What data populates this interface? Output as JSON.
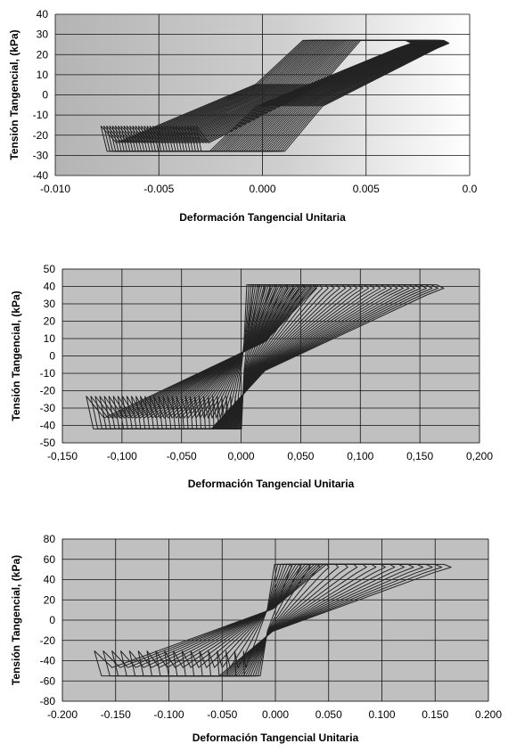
{
  "charts": [
    {
      "type": "line",
      "title": "",
      "ylabel": "Tensión Tangencial, (kPa)",
      "xlabel": "Deformación Tangencial Unitaria",
      "xlim": [
        -0.01,
        0.01
      ],
      "ylim": [
        -40,
        40
      ],
      "x_ticks": [
        "-0.010",
        "-0.005",
        "0.000",
        "0.005",
        "0.0"
      ],
      "y_ticks": [
        "40",
        "30",
        "20",
        "10",
        "0",
        "-10",
        "-20",
        "-30",
        "-40"
      ],
      "grid": true,
      "background": "gradient",
      "cycles": 34,
      "loop": {
        "x_min_start": -0.0032,
        "x_min_end": -0.0078,
        "x_max_start": 0.009,
        "x_max_end": 0.0072,
        "y_max": 27,
        "y_min": -28
      }
    },
    {
      "type": "line",
      "title": "",
      "ylabel": "Tensión Tangencial, (kPa)",
      "xlabel": "Deformación Tangencial Unitaria",
      "xlim": [
        -0.15,
        0.2
      ],
      "ylim": [
        -50,
        50
      ],
      "x_ticks": [
        "-0,150",
        "-0,100",
        "-0,050",
        "0,000",
        "0,050",
        "0,100",
        "0,150",
        "0,200"
      ],
      "y_ticks": [
        "50",
        "40",
        "30",
        "20",
        "10",
        "0",
        "-10",
        "-20",
        "-30",
        "-40",
        "-50"
      ],
      "grid": true,
      "background": "gray",
      "cycles": 34,
      "loop": {
        "x_min_start": -0.005,
        "x_min_end": -0.13,
        "x_max_start": 0.01,
        "x_max_end": 0.17,
        "y_max": 41,
        "y_min": -42
      }
    },
    {
      "type": "line",
      "title": "",
      "ylabel": "Tensión Tangencial, (kPa)",
      "xlabel": "Deformación Tangencial Unitaria",
      "xlim": [
        -0.2,
        0.2
      ],
      "ylim": [
        -80,
        80
      ],
      "x_ticks": [
        "-0.200",
        "-0.150",
        "-0.100",
        "-0.050",
        "0.000",
        "0.050",
        "0.100",
        "0.150",
        "0.200"
      ],
      "y_ticks": [
        "80",
        "60",
        "40",
        "20",
        "0",
        "-20",
        "-40",
        "-60",
        "-80"
      ],
      "grid": true,
      "background": "gray",
      "cycles": 18,
      "loop": {
        "x_min_start": -0.03,
        "x_min_end": -0.17,
        "x_max_start": 0.015,
        "x_max_end": 0.165,
        "y_max": 55,
        "y_min": -55
      }
    }
  ],
  "chart_data": [
    {
      "type": "line",
      "xlabel": "Deformación Tangencial Unitaria",
      "ylabel": "Tensión Tangencial, (kPa)",
      "xlim": [
        -0.01,
        0.01
      ],
      "ylim": [
        -40,
        40
      ],
      "grid": true,
      "series": [
        {
          "values_description_x_range": [
            -0.0078,
            0.009
          ],
          "values_description_y_range": [
            -28,
            27
          ]
        }
      ]
    },
    {
      "type": "line",
      "xlabel": "Deformación Tangencial Unitaria",
      "ylabel": "Tensión Tangencial, (kPa)",
      "xlim": [
        -0.15,
        0.2
      ],
      "ylim": [
        -50,
        50
      ],
      "grid": true,
      "series": [
        {
          "values_description_x_range": [
            -0.13,
            0.17
          ],
          "values_description_y_range": [
            -42,
            41
          ]
        }
      ]
    },
    {
      "type": "line",
      "xlabel": "Deformación Tangencial Unitaria",
      "ylabel": "Tensión Tangencial, (kPa)",
      "xlim": [
        -0.2,
        0.2
      ],
      "ylim": [
        -80,
        80
      ],
      "grid": true,
      "series": [
        {
          "values_description_x_range": [
            -0.17,
            0.165
          ],
          "values_description_y_range": [
            -55,
            55
          ]
        }
      ]
    }
  ]
}
